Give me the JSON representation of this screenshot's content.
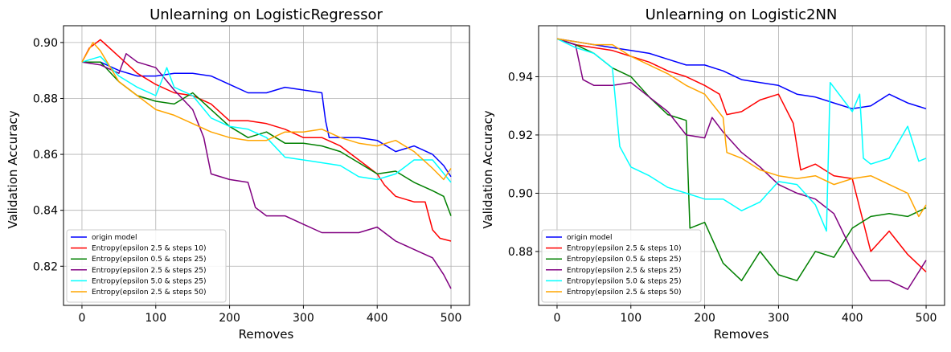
{
  "chart_data": [
    {
      "type": "line",
      "title": "Unlearning on LogisticRegressor",
      "xlabel": "Removes",
      "ylabel": "Validation Accuracy",
      "xlim": [
        -25,
        525
      ],
      "ylim": [
        0.806,
        0.906
      ],
      "xticks": [
        0,
        100,
        200,
        300,
        400,
        500
      ],
      "yticks": [
        0.82,
        0.84,
        0.86,
        0.88,
        0.9
      ],
      "ytick_labels": [
        "0.82",
        "0.84",
        "0.86",
        "0.88",
        "0.90"
      ],
      "grid": true,
      "legend_position": "lower-left",
      "series": [
        {
          "name": "origin model",
          "color": "#0000ff",
          "x": [
            0,
            25,
            50,
            75,
            100,
            125,
            150,
            175,
            200,
            225,
            250,
            275,
            300,
            325,
            330,
            335,
            350,
            375,
            400,
            425,
            450,
            475,
            490,
            500
          ],
          "y": [
            0.893,
            0.893,
            0.89,
            0.888,
            0.888,
            0.889,
            0.889,
            0.888,
            0.885,
            0.882,
            0.882,
            0.884,
            0.883,
            0.882,
            0.872,
            0.866,
            0.866,
            0.866,
            0.865,
            0.861,
            0.863,
            0.86,
            0.856,
            0.852
          ]
        },
        {
          "name": "Entropy(epsilon 2.5 & steps 10)",
          "color": "#ff0000",
          "x": [
            0,
            10,
            25,
            50,
            75,
            100,
            125,
            150,
            175,
            200,
            225,
            250,
            275,
            300,
            325,
            350,
            375,
            400,
            410,
            425,
            450,
            465,
            475,
            485,
            500
          ],
          "y": [
            0.893,
            0.898,
            0.901,
            0.895,
            0.889,
            0.885,
            0.882,
            0.881,
            0.878,
            0.872,
            0.872,
            0.871,
            0.869,
            0.866,
            0.866,
            0.863,
            0.858,
            0.853,
            0.849,
            0.845,
            0.843,
            0.843,
            0.833,
            0.83,
            0.829
          ]
        },
        {
          "name": "Entropy(epsilon 0.5 & steps 25)",
          "color": "#008000",
          "x": [
            0,
            25,
            50,
            75,
            100,
            125,
            150,
            175,
            200,
            225,
            250,
            275,
            300,
            325,
            350,
            375,
            400,
            425,
            450,
            475,
            490,
            500
          ],
          "y": [
            0.893,
            0.893,
            0.886,
            0.881,
            0.879,
            0.878,
            0.882,
            0.876,
            0.87,
            0.866,
            0.868,
            0.864,
            0.864,
            0.863,
            0.861,
            0.857,
            0.853,
            0.854,
            0.85,
            0.847,
            0.845,
            0.838
          ]
        },
        {
          "name": "Entropy(epsilon 2.5 & steps 25)",
          "color": "#800080",
          "x": [
            0,
            25,
            50,
            60,
            75,
            100,
            125,
            150,
            165,
            175,
            200,
            225,
            235,
            250,
            275,
            300,
            325,
            350,
            375,
            400,
            425,
            450,
            475,
            490,
            500
          ],
          "y": [
            0.893,
            0.892,
            0.889,
            0.896,
            0.893,
            0.891,
            0.883,
            0.876,
            0.866,
            0.853,
            0.851,
            0.85,
            0.841,
            0.838,
            0.838,
            0.835,
            0.832,
            0.832,
            0.832,
            0.834,
            0.829,
            0.826,
            0.823,
            0.817,
            0.812
          ]
        },
        {
          "name": "Entropy(epsilon 5.0 & steps 25)",
          "color": "#00ffff",
          "x": [
            0,
            25,
            50,
            75,
            100,
            115,
            125,
            150,
            175,
            200,
            225,
            250,
            275,
            300,
            325,
            350,
            375,
            400,
            425,
            450,
            475,
            500
          ],
          "y": [
            0.893,
            0.895,
            0.888,
            0.884,
            0.881,
            0.891,
            0.884,
            0.881,
            0.873,
            0.87,
            0.869,
            0.866,
            0.859,
            0.858,
            0.857,
            0.856,
            0.852,
            0.851,
            0.853,
            0.858,
            0.858,
            0.85
          ]
        },
        {
          "name": "Entropy(epsilon 2.5 & steps 50)",
          "color": "#ffa500",
          "x": [
            0,
            15,
            25,
            50,
            75,
            100,
            125,
            150,
            175,
            200,
            225,
            250,
            275,
            300,
            325,
            350,
            375,
            400,
            425,
            450,
            475,
            490,
            500
          ],
          "y": [
            0.893,
            0.9,
            0.897,
            0.886,
            0.881,
            0.876,
            0.874,
            0.871,
            0.868,
            0.866,
            0.865,
            0.865,
            0.868,
            0.868,
            0.869,
            0.866,
            0.864,
            0.863,
            0.865,
            0.861,
            0.855,
            0.851,
            0.855
          ]
        }
      ]
    },
    {
      "type": "line",
      "title": "Unlearning on Logistic2NN",
      "xlabel": "Removes",
      "ylabel": "Validation Accuracy",
      "xlim": [
        -25,
        525
      ],
      "ylim": [
        0.8615,
        0.9575
      ],
      "xticks": [
        0,
        100,
        200,
        300,
        400,
        500
      ],
      "yticks": [
        0.88,
        0.9,
        0.92,
        0.94
      ],
      "ytick_labels": [
        "0.88",
        "0.90",
        "0.92",
        "0.94"
      ],
      "grid": true,
      "legend_position": "lower-left",
      "series": [
        {
          "name": "origin model",
          "color": "#0000ff",
          "x": [
            0,
            25,
            50,
            75,
            100,
            125,
            150,
            175,
            200,
            225,
            250,
            275,
            300,
            325,
            350,
            375,
            400,
            425,
            450,
            475,
            500
          ],
          "y": [
            0.953,
            0.952,
            0.951,
            0.95,
            0.949,
            0.948,
            0.946,
            0.944,
            0.944,
            0.942,
            0.939,
            0.938,
            0.937,
            0.934,
            0.933,
            0.931,
            0.929,
            0.93,
            0.934,
            0.931,
            0.929
          ]
        },
        {
          "name": "Entropy(epsilon 2.5 & steps 10)",
          "color": "#ff0000",
          "x": [
            0,
            25,
            50,
            75,
            100,
            125,
            150,
            175,
            200,
            220,
            230,
            250,
            275,
            300,
            320,
            330,
            350,
            375,
            400,
            425,
            450,
            475,
            500
          ],
          "y": [
            0.953,
            0.951,
            0.95,
            0.949,
            0.947,
            0.945,
            0.942,
            0.94,
            0.937,
            0.934,
            0.927,
            0.928,
            0.932,
            0.934,
            0.924,
            0.908,
            0.91,
            0.906,
            0.905,
            0.88,
            0.887,
            0.879,
            0.873
          ]
        },
        {
          "name": "Entropy(epsilon 0.5 & steps 25)",
          "color": "#008000",
          "x": [
            0,
            25,
            50,
            75,
            100,
            125,
            150,
            175,
            180,
            200,
            225,
            250,
            275,
            300,
            325,
            350,
            375,
            400,
            425,
            450,
            475,
            500
          ],
          "y": [
            0.953,
            0.951,
            0.948,
            0.943,
            0.94,
            0.933,
            0.927,
            0.925,
            0.888,
            0.89,
            0.876,
            0.87,
            0.88,
            0.872,
            0.87,
            0.88,
            0.878,
            0.888,
            0.892,
            0.893,
            0.892,
            0.895
          ]
        },
        {
          "name": "Entropy(epsilon 2.5 & steps 25)",
          "color": "#800080",
          "x": [
            0,
            25,
            35,
            50,
            75,
            100,
            125,
            150,
            175,
            200,
            210,
            225,
            250,
            275,
            300,
            325,
            350,
            375,
            400,
            425,
            450,
            475,
            500
          ],
          "y": [
            0.953,
            0.951,
            0.939,
            0.937,
            0.937,
            0.938,
            0.933,
            0.928,
            0.92,
            0.919,
            0.926,
            0.921,
            0.914,
            0.909,
            0.903,
            0.9,
            0.898,
            0.893,
            0.88,
            0.87,
            0.87,
            0.867,
            0.877
          ]
        },
        {
          "name": "Entropy(epsilon 5.0 & steps 25)",
          "color": "#00ffff",
          "x": [
            0,
            25,
            50,
            75,
            85,
            100,
            125,
            150,
            175,
            200,
            225,
            250,
            275,
            300,
            325,
            350,
            365,
            370,
            400,
            410,
            415,
            425,
            450,
            475,
            490,
            500
          ],
          "y": [
            0.953,
            0.95,
            0.948,
            0.943,
            0.916,
            0.909,
            0.906,
            0.902,
            0.9,
            0.898,
            0.898,
            0.894,
            0.897,
            0.904,
            0.903,
            0.896,
            0.887,
            0.938,
            0.928,
            0.934,
            0.912,
            0.91,
            0.912,
            0.923,
            0.911,
            0.912
          ]
        },
        {
          "name": "Entropy(epsilon 2.5 & steps 50)",
          "color": "#ffa500",
          "x": [
            0,
            25,
            50,
            75,
            100,
            125,
            150,
            175,
            200,
            225,
            230,
            250,
            275,
            300,
            325,
            350,
            375,
            400,
            425,
            450,
            475,
            490,
            500
          ],
          "y": [
            0.953,
            0.952,
            0.951,
            0.951,
            0.947,
            0.944,
            0.941,
            0.937,
            0.934,
            0.926,
            0.914,
            0.912,
            0.908,
            0.906,
            0.905,
            0.906,
            0.903,
            0.905,
            0.906,
            0.903,
            0.9,
            0.892,
            0.896
          ]
        }
      ]
    }
  ]
}
